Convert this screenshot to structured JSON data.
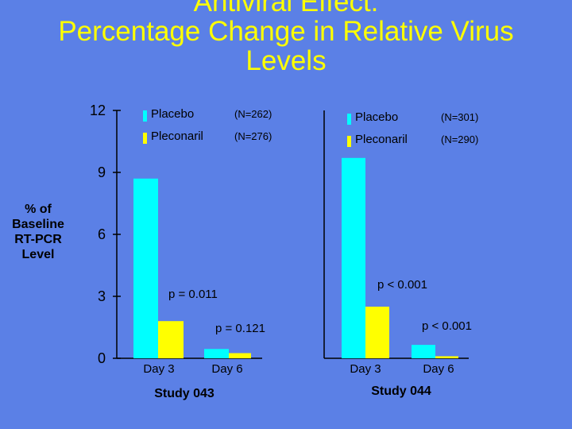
{
  "title": {
    "line1": "Antiviral Effect:",
    "line2": "Percentage Change in Relative Virus",
    "line3": "Levels"
  },
  "ylabel_lines": [
    "% of",
    "Baseline",
    "RT-PCR",
    "Level"
  ],
  "colors": {
    "background": "#5b80e6",
    "placebo": "#00ffff",
    "pleconaril": "#ffff00",
    "title": "#ffff00"
  },
  "chart_data": {
    "type": "bar",
    "title": "Antiviral Effect: Percentage Change in Relative Virus Levels",
    "ylabel": "% of Baseline RT-PCR Level",
    "ylim": [
      0,
      12
    ],
    "yticks": [
      "0",
      "3",
      "6",
      "9",
      "12"
    ],
    "categories": [
      "Day 3",
      "Day 6"
    ],
    "panels": [
      {
        "study": "Study 043",
        "legend": [
          {
            "name": "Placebo",
            "n": "(N=262)"
          },
          {
            "name": "Pleconaril",
            "n": "(N=276)"
          }
        ],
        "series": [
          {
            "name": "Placebo",
            "values": [
              8.7,
              0.45
            ]
          },
          {
            "name": "Pleconaril",
            "values": [
              1.8,
              0.25
            ]
          }
        ],
        "pvalues": [
          "p = 0.011",
          "p = 0.121"
        ]
      },
      {
        "study": "Study 044",
        "legend": [
          {
            "name": "Placebo",
            "n": "(N=301)"
          },
          {
            "name": "Pleconaril",
            "n": "(N=290)"
          }
        ],
        "series": [
          {
            "name": "Placebo",
            "values": [
              9.7,
              0.65
            ]
          },
          {
            "name": "Pleconaril",
            "values": [
              2.5,
              0.1
            ]
          }
        ],
        "pvalues": [
          "p < 0.001",
          "p < 0.001"
        ]
      }
    ]
  }
}
